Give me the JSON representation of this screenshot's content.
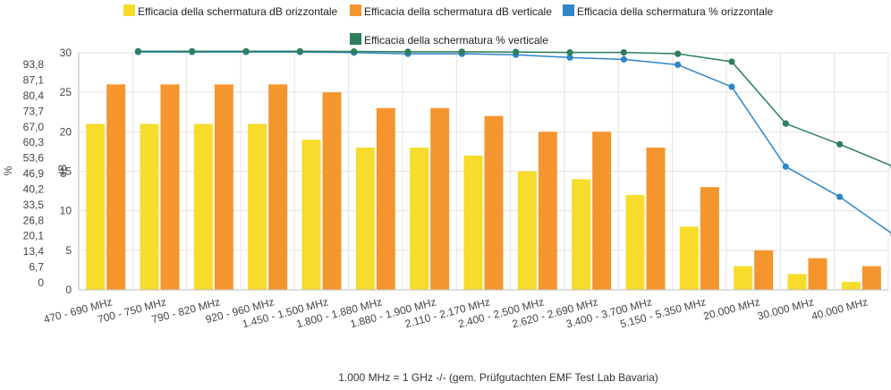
{
  "chart_data": {
    "type": "bar",
    "categories": [
      "470 - 690 MHz",
      "700 - 750 MHz",
      "790 - 820 MHz",
      "920 - 960 MHz",
      "1.450 - 1.500 MHz",
      "1.800 - 1.880 MHz",
      "1.880 - 1.900 MHz",
      "2.110 - 2.170 MHz",
      "2.400 - 2.500 MHz",
      "2.620 - 2.690 MHz",
      "3.400 - 3.700 MHz",
      "5.150 - 5.350 MHz",
      "20.000 MHz",
      "30.000 MHz",
      "40.000 MHz"
    ],
    "series": [
      {
        "name": "Efficacia della schermatura dB orizzontale",
        "kind": "bar",
        "axis": "dB",
        "color": "#f7dc2c",
        "values": [
          21,
          21,
          21,
          21,
          19,
          18,
          18,
          17,
          15,
          14,
          12,
          8,
          3,
          2,
          1
        ]
      },
      {
        "name": "Efficacia della schermatura dB verticale",
        "kind": "bar",
        "axis": "dB",
        "color": "#f5952e",
        "values": [
          26,
          26,
          26,
          26,
          25,
          23,
          23,
          22,
          20,
          20,
          18,
          13,
          5,
          4,
          3
        ]
      },
      {
        "name": "Efficacia della schermatura % orizzontale",
        "kind": "line",
        "axis": "%",
        "color": "#2f86c8",
        "values": [
          99.2,
          99.2,
          99.2,
          99.2,
          98.9,
          98.4,
          98.4,
          98.0,
          96.8,
          96.0,
          93.7,
          84.2,
          49.9,
          36.9,
          20.6
        ]
      },
      {
        "name": "Efficacia della schermatura % verticale",
        "kind": "line",
        "axis": "%",
        "color": "#2e7d5b",
        "values": [
          99.5,
          99.5,
          99.5,
          99.5,
          99.4,
          99.3,
          99.3,
          99.2,
          99.0,
          99.0,
          98.4,
          95.0,
          68.4,
          59.5,
          49.9
        ]
      }
    ],
    "y_left": {
      "label": "dB",
      "ticks": [
        0,
        5,
        10,
        15,
        20,
        25,
        30
      ],
      "ylim": [
        0,
        30
      ]
    },
    "y_far_left": {
      "label": "%",
      "ticks": [
        "0",
        "6,7",
        "13,4",
        "20,1",
        "26,8",
        "33,5",
        "40,2",
        "46,9",
        "53,6",
        "60,3",
        "67,0",
        "73,7",
        "80,4",
        "87,1",
        "93,8"
      ],
      "ylim": [
        0,
        100
      ]
    },
    "legend_position": "top",
    "grid": true,
    "footnote": "1.000 MHz = 1 GHz -/- (gem. Prüfgutachten EMF Test Lab Bavaria)"
  }
}
